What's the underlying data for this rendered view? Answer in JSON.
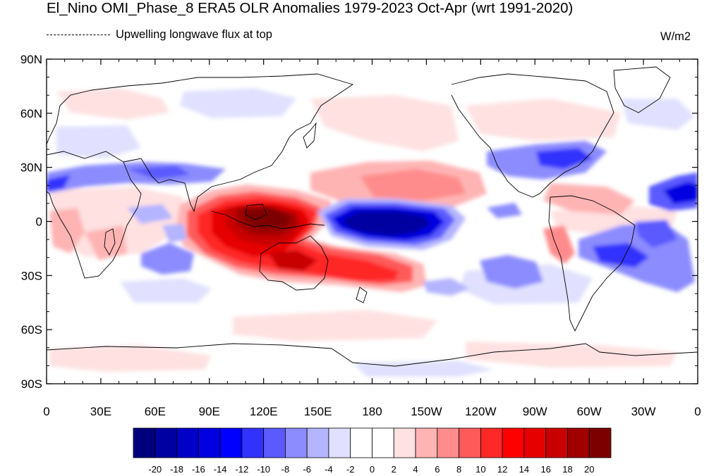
{
  "title": "El_Nino OMI_Phase_8 ERA5 OLR Anomalies 1979-2023 Oct-Apr (wrt 1991-2020)",
  "subtitle": "Upwelling longwave flux at top",
  "units": "W/m2",
  "map": {
    "lat_ticks": [
      "90N",
      "60N",
      "30N",
      "0",
      "30S",
      "60S",
      "90S"
    ],
    "lon_ticks": [
      "0",
      "30E",
      "60E",
      "90E",
      "120E",
      "150E",
      "180",
      "150W",
      "120W",
      "90W",
      "60W",
      "30W",
      "0"
    ],
    "colorbar_labels": [
      "-20",
      "-18",
      "-16",
      "-14",
      "-12",
      "-10",
      "-8",
      "-6",
      "-4",
      "-2",
      "0",
      "2",
      "4",
      "6",
      "8",
      "10",
      "12",
      "14",
      "16",
      "18",
      "20"
    ],
    "colorbar_colors": [
      "#00007d",
      "#0000a0",
      "#0000c8",
      "#0000e1",
      "#0000ff",
      "#3232ff",
      "#5a5aff",
      "#8c8cff",
      "#b4b4ff",
      "#e1e1ff",
      "#ffffff",
      "#ffffff",
      "#ffe1e1",
      "#ffb4b4",
      "#ff8c8c",
      "#ff5a5a",
      "#ff2828",
      "#ff0000",
      "#e60000",
      "#c80000",
      "#a00000",
      "#7d0000"
    ]
  }
}
